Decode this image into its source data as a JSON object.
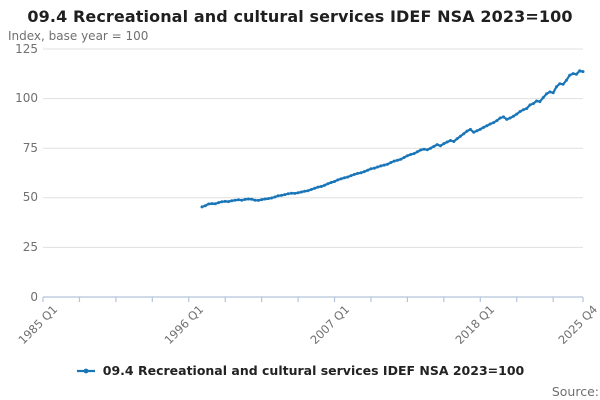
{
  "header": {
    "title": "09.4 Recreational and cultural services IDEF NSA 2023=100",
    "subtitle": "Index, base year = 100"
  },
  "legend": {
    "label": "09.4 Recreational and cultural services IDEF NSA 2023=100"
  },
  "footer": {
    "source_label": "Source:"
  },
  "colors": {
    "line": "#1976b8",
    "grid": "#e0e0e0",
    "axis": "#b4c3dc",
    "title_text": "#1f1f1f",
    "muted_text": "#707070"
  },
  "chart_data": {
    "type": "line",
    "title": "09.4 Recreational and cultural services IDEF NSA 2023=100",
    "ylabel": "Index, base year = 100",
    "xlabel": "",
    "grid": true,
    "legend_position": "bottom",
    "ylim": [
      0,
      125
    ],
    "y_ticks": [
      0,
      25,
      50,
      75,
      100,
      125
    ],
    "x_axis": {
      "start": "1985 Q1",
      "end": "2025 Q4",
      "total_quarters": 163,
      "minor_tick_every_quarters": 11,
      "labeled_ticks": [
        {
          "label": "1985 Q1",
          "q": 0
        },
        {
          "label": "1996 Q1",
          "q": 44
        },
        {
          "label": "2007 Q1",
          "q": 88
        },
        {
          "label": "2018 Q1",
          "q": 132
        },
        {
          "label": "2025 Q4",
          "q": 163
        }
      ]
    },
    "series": [
      {
        "name": "09.4 Recreational and cultural services IDEF NSA 2023=100",
        "frequency": "quarterly",
        "start": "1997 Q1",
        "end": "2025 Q4",
        "start_offset_quarters": 48,
        "values": [
          45.4,
          46.0,
          46.9,
          47.1,
          47.0,
          47.6,
          48.0,
          48.2,
          48.1,
          48.5,
          48.8,
          49.0,
          48.8,
          49.2,
          49.4,
          49.3,
          48.8,
          48.7,
          49.1,
          49.4,
          49.6,
          49.9,
          50.4,
          51.0,
          51.2,
          51.6,
          52.0,
          52.3,
          52.2,
          52.5,
          52.9,
          53.3,
          53.6,
          54.2,
          54.8,
          55.4,
          55.7,
          56.3,
          57.1,
          57.7,
          58.2,
          59.0,
          59.6,
          60.1,
          60.5,
          61.2,
          61.8,
          62.3,
          62.6,
          63.2,
          63.9,
          64.6,
          64.9,
          65.5,
          66.1,
          66.5,
          66.9,
          67.8,
          68.5,
          68.9,
          69.4,
          70.3,
          71.2,
          71.8,
          72.3,
          73.2,
          74.1,
          74.5,
          74.2,
          75.0,
          75.9,
          76.8,
          76.2,
          77.3,
          78.1,
          78.9,
          78.4,
          79.8,
          81.0,
          82.3,
          83.6,
          84.5,
          83.0,
          83.8,
          84.6,
          85.5,
          86.3,
          87.2,
          87.9,
          88.9,
          90.2,
          90.8,
          89.5,
          90.2,
          91.1,
          92.2,
          93.5,
          94.4,
          95.0,
          96.8,
          97.5,
          98.8,
          98.5,
          100.5,
          102.4,
          103.4,
          102.9,
          106.0,
          107.5,
          107.2,
          109.2,
          111.8,
          112.6,
          112.3,
          114.0,
          113.6
        ]
      }
    ]
  }
}
